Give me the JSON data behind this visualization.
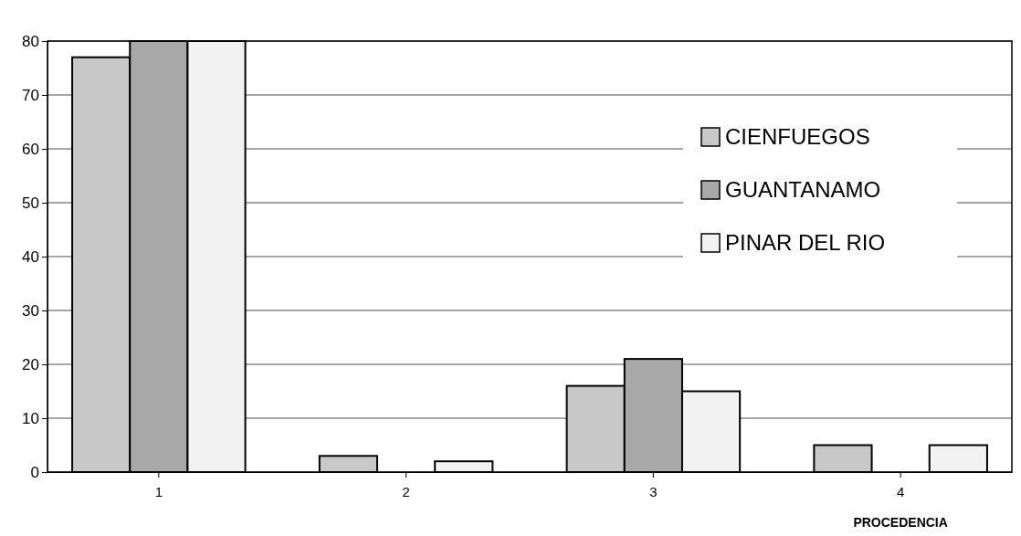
{
  "chart_data": {
    "type": "bar",
    "xlabel": "PROCEDENCIA",
    "categories": [
      "1",
      "2",
      "3",
      "4"
    ],
    "series": [
      {
        "name": "CIENFUEGOS",
        "color": "#c8c8c8",
        "values": [
          77,
          3,
          16,
          5
        ]
      },
      {
        "name": "GUANTANAMO",
        "color": "#a8a8a8",
        "values": [
          80,
          0,
          21,
          0
        ]
      },
      {
        "name": "PINAR DEL RIO",
        "color": "#f2f2f2",
        "values": [
          80,
          2,
          15,
          5
        ]
      }
    ],
    "ylim": [
      0,
      80
    ],
    "yticks": [
      0,
      10,
      20,
      30,
      40,
      50,
      60,
      70,
      80
    ],
    "grid": "y",
    "legend": "right"
  }
}
